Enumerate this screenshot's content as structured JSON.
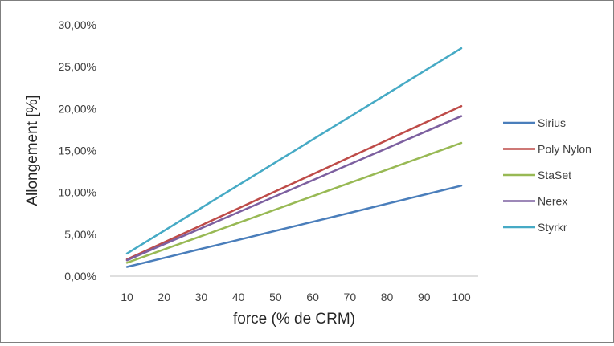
{
  "chart_data": {
    "type": "line",
    "title": "",
    "xlabel": "force (% de CRM)",
    "ylabel": "Allongement [%]",
    "x": [
      10,
      20,
      30,
      40,
      50,
      60,
      70,
      80,
      90,
      100
    ],
    "x_tick_labels": [
      "10",
      "20",
      "30",
      "40",
      "50",
      "60",
      "70",
      "80",
      "90",
      "100"
    ],
    "ylim": [
      0,
      0.3
    ],
    "y_ticks": [
      0,
      0.05,
      0.1,
      0.15,
      0.2,
      0.25,
      0.3
    ],
    "y_tick_labels": [
      "0,00%",
      "5,00%",
      "10,00%",
      "15,00%",
      "20,00%",
      "25,00%",
      "30,00%"
    ],
    "grid": false,
    "legend_position": "right",
    "series": [
      {
        "name": "Sirius",
        "color": "#4a7ebb",
        "start": 0.011,
        "end": 0.108
      },
      {
        "name": "Poly Nylon",
        "color": "#be4b48",
        "start": 0.02,
        "end": 0.203
      },
      {
        "name": "StaSet",
        "color": "#98b954",
        "start": 0.016,
        "end": 0.159
      },
      {
        "name": "Nerex",
        "color": "#7d60a0",
        "start": 0.019,
        "end": 0.191
      },
      {
        "name": "Styrkr",
        "color": "#46aac5",
        "start": 0.027,
        "end": 0.272
      }
    ]
  }
}
